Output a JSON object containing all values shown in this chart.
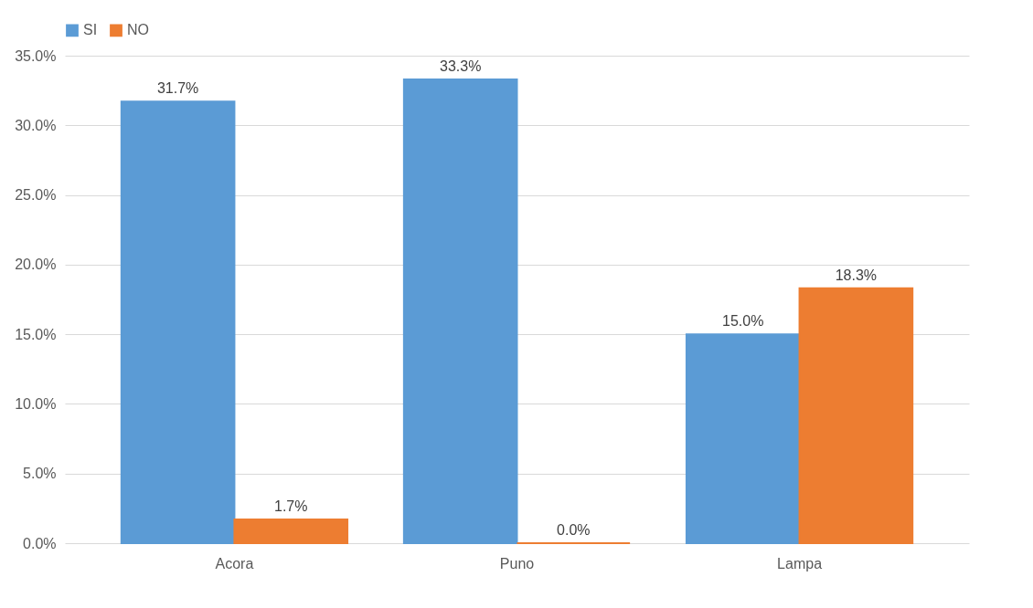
{
  "chart_data": {
    "type": "bar",
    "categories": [
      "Acora",
      "Puno",
      "Lampa"
    ],
    "series": [
      {
        "name": "SI",
        "color": "#5b9bd5",
        "values": [
          31.7,
          33.3,
          15.0
        ],
        "value_labels": [
          "31.7%",
          "33.3%",
          "15.0%"
        ]
      },
      {
        "name": "NO",
        "color": "#ed7d31",
        "values": [
          1.7,
          0.0,
          18.3
        ],
        "value_labels": [
          "1.7%",
          "0.0%",
          "18.3%"
        ]
      }
    ],
    "ylim": [
      0,
      35
    ],
    "yticks": [
      {
        "value": 0,
        "label": "0.0%"
      },
      {
        "value": 5,
        "label": "5.0%"
      },
      {
        "value": 10,
        "label": "10.0%"
      },
      {
        "value": 15,
        "label": "15.0%"
      },
      {
        "value": 20,
        "label": "20.0%"
      },
      {
        "value": 25,
        "label": "25.0%"
      },
      {
        "value": 30,
        "label": "30.0%"
      },
      {
        "value": 35,
        "label": "35.0%"
      }
    ],
    "grid": "y",
    "legend": "top"
  }
}
